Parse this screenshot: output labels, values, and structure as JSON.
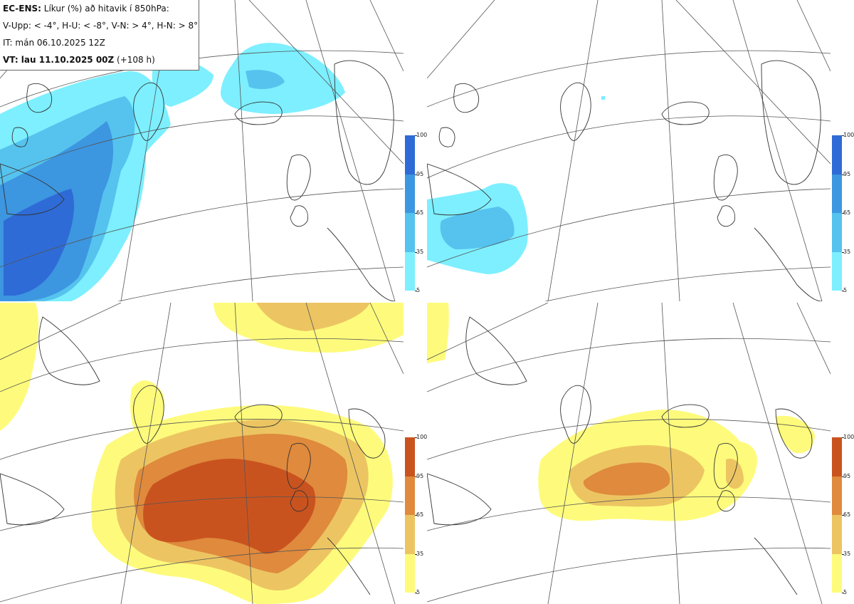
{
  "header": {
    "model": "EC-ENS:",
    "title_rest": " Líkur (%) að hitavik í 850hPa:",
    "thresholds": "V-Upp: < -4°, H-U: < -8°, V-N: > 4°, H-N: > 8°",
    "init_time": "IT: mán 06.10.2025 12Z",
    "valid_label": "VT: lau 11.10.2025 00Z",
    "valid_offset": " (+108 h)"
  },
  "panels": [
    {
      "id": "V-Upp",
      "description": "anomaly < -4°",
      "scheme": "blue"
    },
    {
      "id": "H-U",
      "description": "anomaly < -8°",
      "scheme": "blue"
    },
    {
      "id": "V-N",
      "description": "anomaly > 4°",
      "scheme": "orange"
    },
    {
      "id": "H-N",
      "description": "anomaly > 8°",
      "scheme": "orange"
    }
  ],
  "legend": {
    "ticks": [
      "100",
      "95",
      "65",
      "35",
      "5"
    ],
    "blue_colors": [
      "#2e6bd6",
      "#3d96e0",
      "#55c3ee",
      "#7defff"
    ],
    "orange_colors": [
      "#c9531f",
      "#df8a3d",
      "#ecc562",
      "#fefb7c"
    ]
  },
  "colors": {
    "coast": "#333333",
    "grid": "#555555"
  }
}
